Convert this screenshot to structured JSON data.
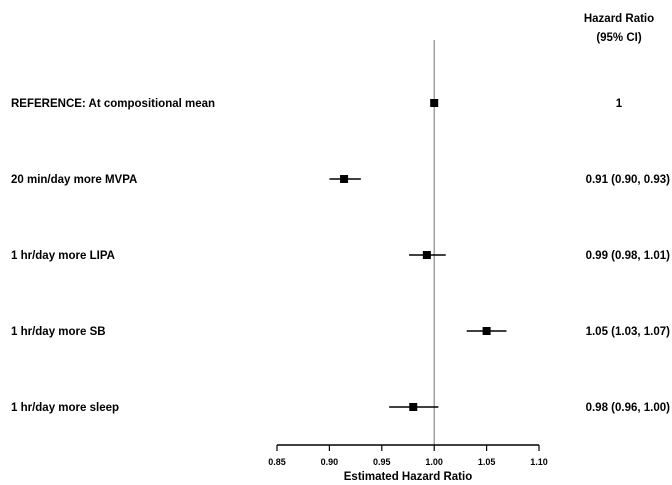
{
  "header": {
    "line1": "Hazard Ratio",
    "line2": "(95% CI)"
  },
  "chart_data": {
    "type": "forest",
    "xlabel": "Estimated Hazard Ratio",
    "xlim": [
      0.85,
      1.1
    ],
    "xticks": [
      "0.85",
      "0.90",
      "0.95",
      "1.00",
      "1.05",
      "1.10"
    ],
    "reference_line": 1.0,
    "rows": [
      {
        "label": "REFERENCE: At compositional mean",
        "hr": 1.0,
        "lo": null,
        "hi": null,
        "text": "1"
      },
      {
        "label": "20 min/day more MVPA",
        "hr": 0.914,
        "lo": 0.9,
        "hi": 0.93,
        "text": "0.91 (0.90, 0.93)"
      },
      {
        "label": "1 hr/day more LIPA",
        "hr": 0.993,
        "lo": 0.976,
        "hi": 1.011,
        "text": "0.99 (0.98, 1.01)"
      },
      {
        "label": "1 hr/day more SB",
        "hr": 1.05,
        "lo": 1.031,
        "hi": 1.069,
        "text": "1.05 (1.03, 1.07)"
      },
      {
        "label": "1 hr/day more sleep",
        "hr": 0.98,
        "lo": 0.957,
        "hi": 1.004,
        "text": "0.98 (0.96, 1.00)"
      }
    ]
  }
}
